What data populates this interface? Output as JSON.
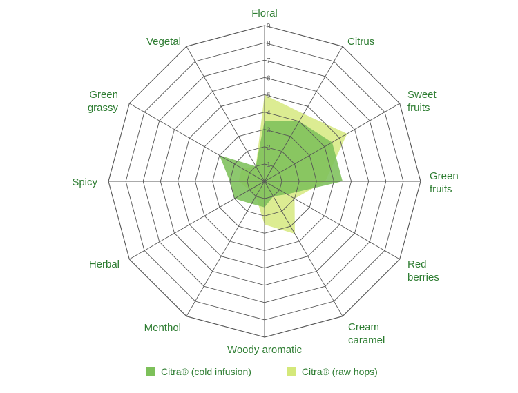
{
  "chart_data": {
    "type": "radar",
    "axes": [
      "Floral",
      "Citrus",
      "Sweet fruits",
      "Green fruits",
      "Red berries",
      "Cream caramel",
      "Woody aromatic",
      "Menthol",
      "Herbal",
      "Spicy",
      "Green grassy",
      "Vegetal"
    ],
    "ticks": [
      "1",
      "2",
      "3",
      "4",
      "5",
      "6",
      "7",
      "8",
      "9"
    ],
    "range": [
      0,
      9
    ],
    "series": [
      {
        "name": "Citra® (cold infusion)",
        "color": "#7dc05a",
        "values": [
          3.5,
          4.0,
          4.5,
          4.5,
          1.5,
          1.0,
          1.5,
          1.5,
          2.0,
          2.0,
          3.0,
          1.0
        ]
      },
      {
        "name": "Citra® (raw hops)",
        "color": "#d4e87a",
        "values": [
          5.0,
          4.5,
          5.5,
          3.5,
          2.0,
          3.5,
          2.5,
          1.0,
          1.0,
          1.5,
          1.5,
          1.0
        ]
      }
    ],
    "legend_position": "bottom"
  }
}
